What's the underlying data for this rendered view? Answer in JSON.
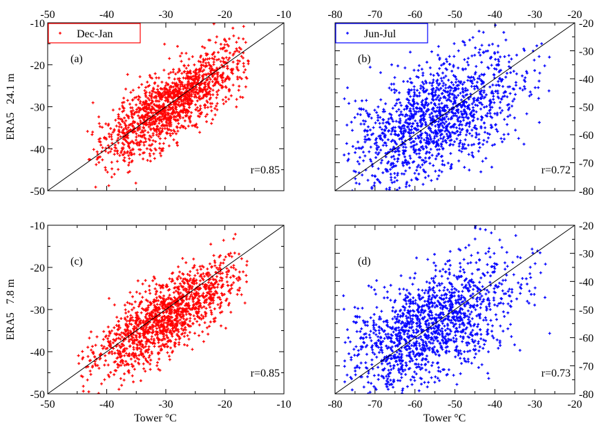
{
  "chart_data": [
    {
      "id": "a",
      "type": "scatter",
      "panel_label": "(a)",
      "ylabel": "ERA5   24.1 m",
      "xlabel": "",
      "xlim": [
        -50,
        -10
      ],
      "ylim": [
        -50,
        -10
      ],
      "xticks": [
        -50,
        -40,
        -30,
        -20,
        -10
      ],
      "yticks": [
        -50,
        -40,
        -30,
        -20,
        -10
      ],
      "xtick_position": "top",
      "ytick_position": "left",
      "annotation": "r=0.85",
      "legend": {
        "label": "Dec-Jan",
        "location": "top-left"
      },
      "series": [
        {
          "name": "Dec-Jan",
          "color": "#ff0000",
          "marker": "plus",
          "x_range": [
            -44,
            -16
          ],
          "slope": 0.85,
          "r": 0.85,
          "centroid": [
            -29,
            -29.5
          ],
          "count": 1400
        }
      ],
      "reference_line": "y=x"
    },
    {
      "id": "b",
      "type": "scatter",
      "panel_label": "(b)",
      "ylabel": "",
      "xlabel": "",
      "xlim": [
        -80,
        -20
      ],
      "ylim": [
        -80,
        -20
      ],
      "xticks": [
        -80,
        -70,
        -60,
        -50,
        -40,
        -30,
        -20
      ],
      "yticks": [
        -80,
        -70,
        -60,
        -50,
        -40,
        -30,
        -20
      ],
      "xtick_position": "top",
      "ytick_position": "right",
      "annotation": "r=0.72",
      "legend": {
        "label": "Jun-Jul",
        "location": "top-left"
      },
      "series": [
        {
          "name": "Jun-Jul",
          "color": "#0000ff",
          "marker": "plus",
          "x_range": [
            -78,
            -26
          ],
          "slope": 0.6,
          "r": 0.72,
          "centroid": [
            -55,
            -54.5
          ],
          "count": 1400
        }
      ],
      "reference_line": "y=x"
    },
    {
      "id": "c",
      "type": "scatter",
      "panel_label": "(c)",
      "ylabel": "ERA5   7.8 m",
      "xlabel": "Tower °C",
      "xlim": [
        -50,
        -10
      ],
      "ylim": [
        -50,
        -10
      ],
      "xticks": [
        -50,
        -40,
        -30,
        -20,
        -10
      ],
      "yticks": [
        -50,
        -40,
        -30,
        -20,
        -10
      ],
      "xtick_position": "bottom",
      "ytick_position": "left",
      "annotation": "r=0.85",
      "series": [
        {
          "color": "#ff0000",
          "marker": "plus",
          "x_range": [
            -45,
            -16
          ],
          "slope": 0.82,
          "r": 0.85,
          "centroid": [
            -30,
            -32
          ],
          "count": 1400
        }
      ],
      "reference_line": "y=x"
    },
    {
      "id": "d",
      "type": "scatter",
      "panel_label": "(d)",
      "ylabel": "",
      "xlabel": "Tower °C",
      "xlim": [
        -80,
        -20
      ],
      "ylim": [
        -80,
        -20
      ],
      "xticks": [
        -80,
        -70,
        -60,
        -50,
        -40,
        -30,
        -20
      ],
      "yticks": [
        -80,
        -70,
        -60,
        -50,
        -40,
        -30,
        -20
      ],
      "xtick_position": "bottom",
      "ytick_position": "right",
      "annotation": "r=0.73",
      "series": [
        {
          "color": "#0000ff",
          "marker": "plus",
          "x_range": [
            -78,
            -26
          ],
          "slope": 0.6,
          "r": 0.73,
          "centroid": [
            -56,
            -56
          ],
          "count": 1400
        }
      ],
      "reference_line": "y=x"
    }
  ]
}
